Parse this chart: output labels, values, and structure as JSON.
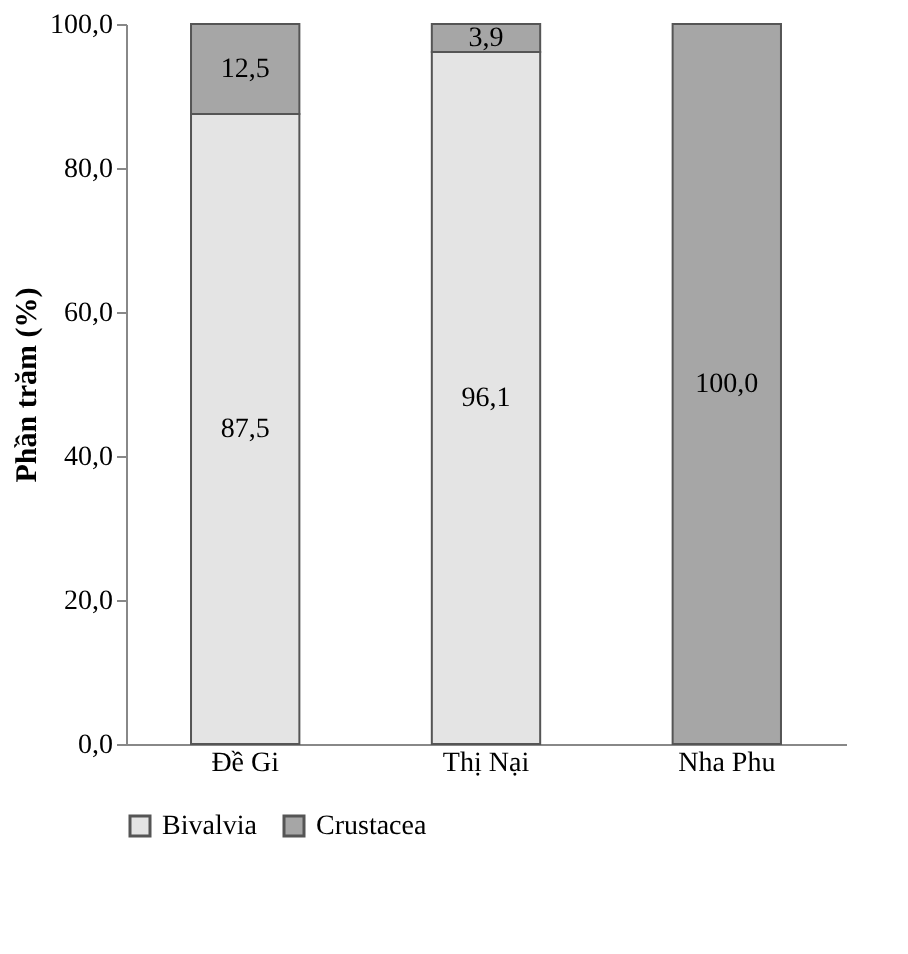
{
  "chart_data": {
    "type": "bar",
    "stacked": true,
    "ylabel": "Phần trăm (%)",
    "categories": [
      "Đề Gi",
      "Thị Nại",
      "Nha Phu"
    ],
    "series": [
      {
        "name": "Bivalvia",
        "color": "#e4e4e4",
        "values": [
          87.5,
          96.1,
          0
        ],
        "value_labels": [
          "87,5",
          "96,1",
          null
        ]
      },
      {
        "name": "Crustacea",
        "color": "#a6a6a6",
        "values": [
          12.5,
          3.9,
          100
        ],
        "value_labels": [
          "12,5",
          "3,9",
          "100,0"
        ]
      }
    ],
    "ylim": [
      0,
      100
    ],
    "yticks": [
      {
        "value": 0,
        "label": "0,0"
      },
      {
        "value": 20,
        "label": "20,0"
      },
      {
        "value": 40,
        "label": "40,0"
      },
      {
        "value": 60,
        "label": "60,0"
      },
      {
        "value": 80,
        "label": "80,0"
      },
      {
        "value": 100,
        "label": "100,0"
      }
    ],
    "grid": false,
    "legend": "bottom"
  }
}
